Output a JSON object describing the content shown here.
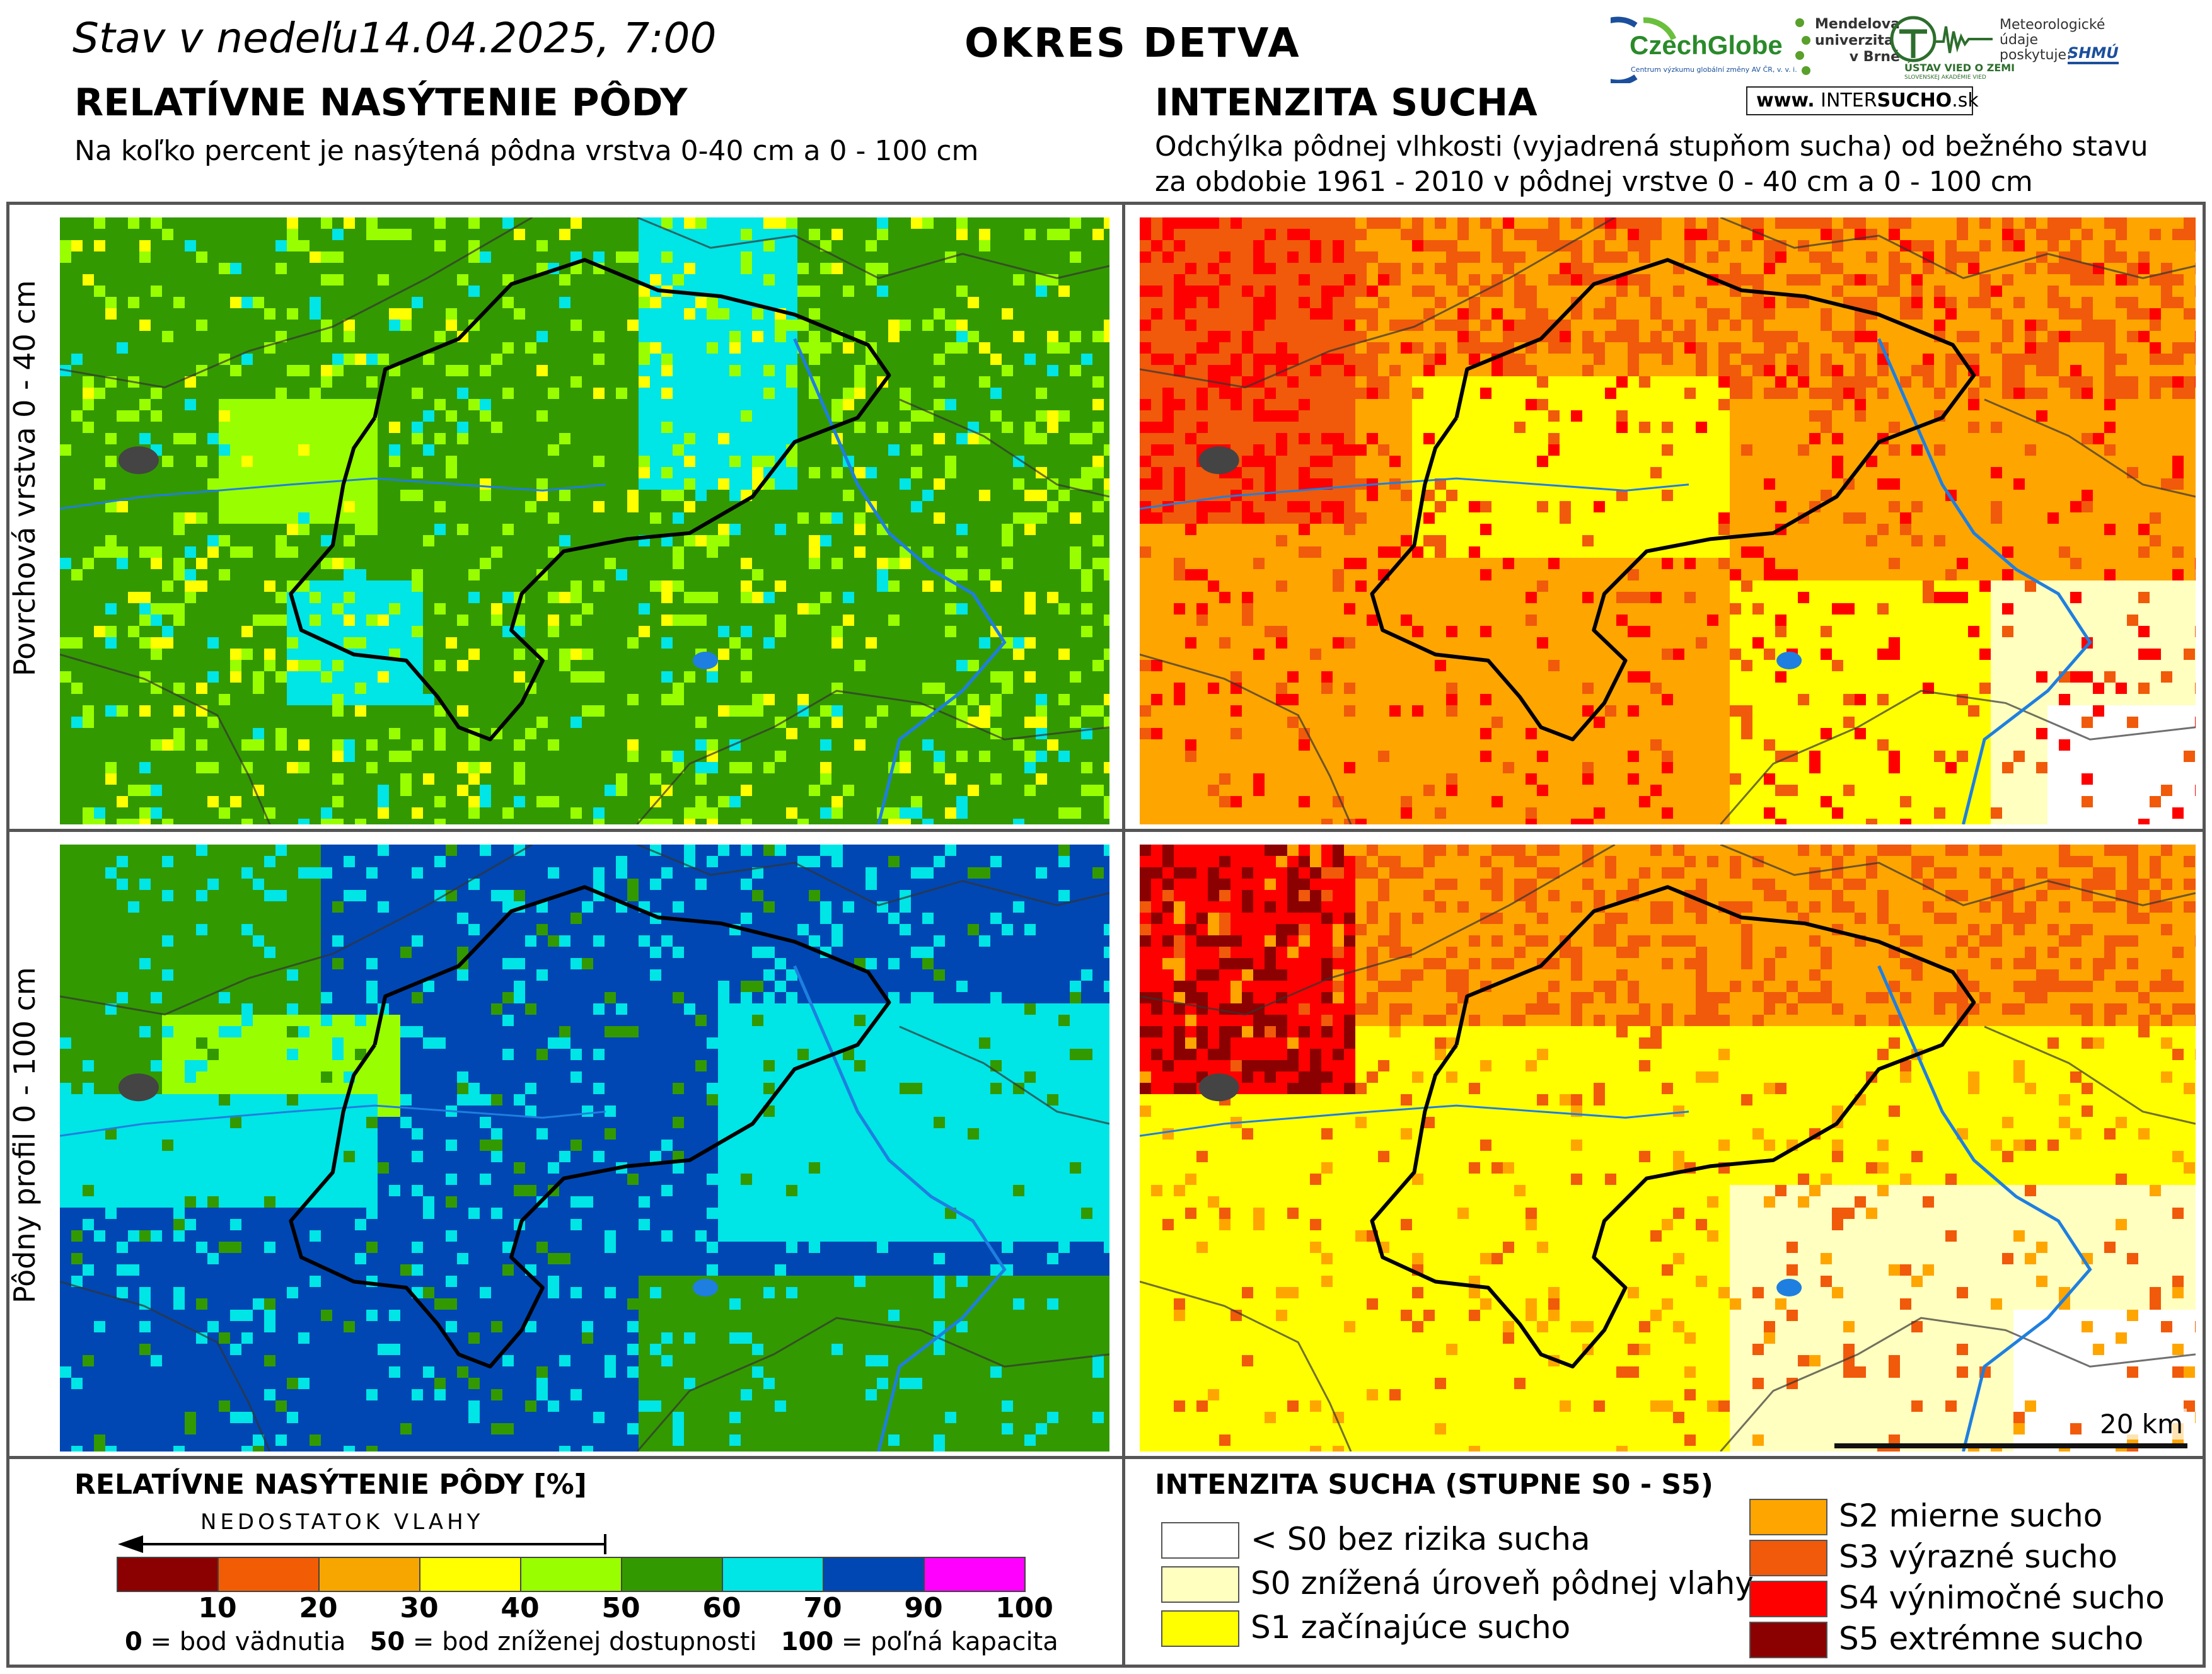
{
  "header": {
    "status_prefix": "Stav v nedeľu",
    "status_datetime": "14.04.2025, 7:00",
    "district": "OKRES DETVA"
  },
  "left_title": "RELATÍVNE NASÝTENIE PÔDY",
  "left_subtitle": "Na koľko percent je nasýtená pôdna vrstva 0-40 cm a 0 - 100 cm",
  "right_title": "INTENZITA SUCHA",
  "right_subtitle_1": "Odchýlka pôdnej vlhkosti (vyjadrená stupňom sucha) od bežného stavu",
  "right_subtitle_2": "za obdobie 1961 - 2010 v pôdnej vrstve 0 - 40 cm a 0 - 100 cm",
  "row_labels": {
    "top": "Povrchová vrstva 0 - 40 cm",
    "bottom": "Pôdny profil 0 - 100 cm"
  },
  "logos": {
    "czechglobe": "CzechGlobe",
    "czechglobe_tagline": "Centrum výzkumu globální změny AV ČR, v. v. i.",
    "mendel_1": "Mendelova",
    "mendel_2": "univerzita",
    "mendel_3": "v Brně",
    "ustav": "ÚSTAV VIED O ZEMI",
    "ustav_sub": "SLOVENSKEJ AKADÉMIE VIED",
    "meteo_1": "Meteorologické",
    "meteo_2": "údaje",
    "meteo_3": "poskytuje:",
    "shmu": "SHMÚ",
    "intersucho_www": "www.",
    "intersucho_inter": "INTER",
    "intersucho_sucho": "SUCHO",
    "intersucho_sk": ".sk"
  },
  "scale_bar_label": "20 km",
  "saturation_legend": {
    "title": "RELATÍVNE NASÝTENIE PÔDY [%]",
    "arrow_label": "NEDOSTATOK VLAHY",
    "ticks": [
      "10",
      "20",
      "30",
      "40",
      "50",
      "60",
      "70",
      "90",
      "100"
    ],
    "colors": [
      "#8b0000",
      "#f25c05",
      "#f7a600",
      "#ffff00",
      "#99ff00",
      "#339900",
      "#00e5e5",
      "#0047b3",
      "#ff00ff"
    ],
    "footnote_0_num": "0",
    "footnote_0_text": " = bod vädnutia",
    "footnote_50_num": "50",
    "footnote_50_text": " = bod zníženej dostupnosti",
    "footnote_100_num": "100",
    "footnote_100_text": " = poľná kapacita"
  },
  "drought_legend": {
    "title": "INTENZITA SUCHA (STUPNE S0 - S5)",
    "items_left": [
      {
        "label": "< S0 bez rizika sucha",
        "color": "#ffffff"
      },
      {
        "label": "S0 znížená úroveň pôdnej vlahy",
        "color": "#ffffc0"
      },
      {
        "label": "S1 začínajúce sucho",
        "color": "#ffff00"
      }
    ],
    "items_right": [
      {
        "label": "S2 mierne sucho",
        "color": "#ffa500"
      },
      {
        "label": "S3 výrazné sucho",
        "color": "#f05a0a"
      },
      {
        "label": "S4 výnimočné sucho",
        "color": "#ff0000"
      },
      {
        "label": "S5 extrémne sucho",
        "color": "#8b0000"
      }
    ]
  }
}
